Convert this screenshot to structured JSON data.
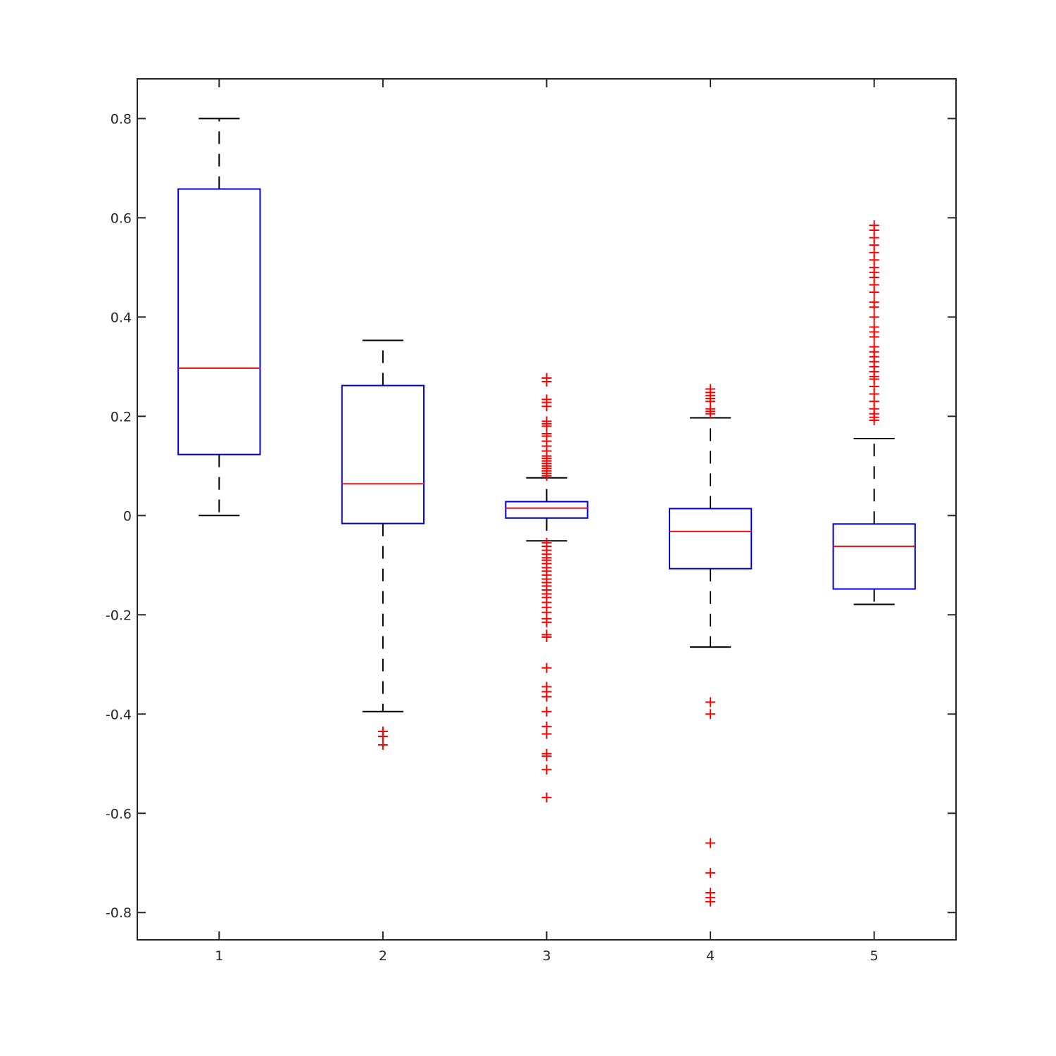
{
  "chart_data": {
    "type": "box",
    "title": "",
    "xlabel": "",
    "ylabel": "",
    "categories": [
      "1",
      "2",
      "3",
      "4",
      "5"
    ],
    "xlim": [
      0.5,
      5.5
    ],
    "ylim": [
      -0.855,
      0.88
    ],
    "yticks": [
      -0.8,
      -0.6,
      -0.4,
      -0.2,
      0,
      0.2,
      0.4,
      0.6,
      0.8
    ],
    "ytick_labels": [
      "-0.8",
      "-0.6",
      "-0.4",
      "-0.2",
      "0",
      "0.2",
      "0.4",
      "0.6",
      "0.8"
    ],
    "grid": false,
    "colors": {
      "box": "#0000dd",
      "median": "#ee1111",
      "whisker": "#000000",
      "outlier": "#ff0000",
      "axis": "#262626"
    },
    "boxes": [
      {
        "category": "1",
        "whisker_low": 0.0,
        "q1": 0.123,
        "median": 0.297,
        "q3": 0.658,
        "whisker_high": 0.8,
        "outliers": []
      },
      {
        "category": "2",
        "whisker_low": -0.395,
        "q1": -0.016,
        "median": 0.064,
        "q3": 0.262,
        "whisker_high": 0.353,
        "outliers": [
          -0.435,
          -0.445,
          -0.462
        ]
      },
      {
        "category": "3",
        "whisker_low": -0.051,
        "q1": -0.005,
        "median": 0.015,
        "q3": 0.028,
        "whisker_high": 0.076,
        "outliers": [
          0.277,
          0.27,
          0.234,
          0.228,
          0.22,
          0.19,
          0.185,
          0.18,
          0.165,
          0.16,
          0.15,
          0.14,
          0.13,
          0.12,
          0.115,
          0.11,
          0.105,
          0.1,
          0.095,
          0.09,
          0.085,
          0.08,
          -0.055,
          -0.062,
          -0.07,
          -0.078,
          -0.085,
          -0.09,
          -0.097,
          -0.105,
          -0.112,
          -0.12,
          -0.128,
          -0.135,
          -0.142,
          -0.15,
          -0.158,
          -0.165,
          -0.175,
          -0.185,
          -0.195,
          -0.208,
          -0.215,
          -0.24,
          -0.245,
          -0.307,
          -0.345,
          -0.355,
          -0.365,
          -0.395,
          -0.425,
          -0.44,
          -0.48,
          -0.485,
          -0.512,
          -0.568
        ]
      },
      {
        "category": "4",
        "whisker_low": -0.265,
        "q1": -0.107,
        "median": -0.032,
        "q3": 0.014,
        "whisker_high": 0.197,
        "outliers": [
          0.255,
          0.248,
          0.242,
          0.236,
          0.23,
          0.215,
          0.21,
          0.205,
          -0.376,
          -0.4,
          -0.66,
          -0.72,
          -0.76,
          -0.77,
          -0.778
        ]
      },
      {
        "category": "5",
        "whisker_low": -0.179,
        "q1": -0.148,
        "median": -0.062,
        "q3": -0.017,
        "whisker_high": 0.155,
        "outliers": [
          0.585,
          0.575,
          0.56,
          0.545,
          0.53,
          0.515,
          0.5,
          0.49,
          0.48,
          0.465,
          0.45,
          0.43,
          0.42,
          0.4,
          0.38,
          0.37,
          0.36,
          0.34,
          0.33,
          0.32,
          0.31,
          0.3,
          0.29,
          0.28,
          0.275,
          0.26,
          0.245,
          0.23,
          0.215,
          0.205,
          0.198,
          0.192
        ]
      }
    ]
  }
}
